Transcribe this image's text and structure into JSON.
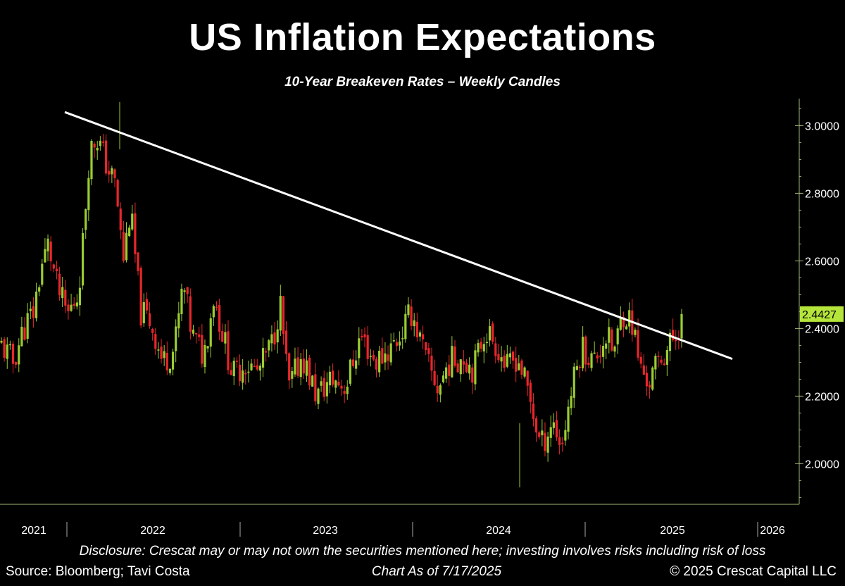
{
  "header": {
    "title": "US Inflation Expectations",
    "subtitle": "10-Year Breakeven Rates – Weekly Candles"
  },
  "footer": {
    "disclosure": "Disclosure: Crescat may or may not own the securities mentioned here; investing involves risks including risk of loss",
    "source": "Source: Bloomberg; Tavi Costa",
    "as_of": "Chart As of 7/17/2025",
    "copyright": "© 2025 Crescat Capital LLC"
  },
  "colors": {
    "background": "#000000",
    "up": "#9ACD32",
    "down": "#E8262B",
    "trendline": "#FFFFFF",
    "axis": "#A0B878",
    "last_price_label": "#B5E53A",
    "text": "#FFFFFF"
  },
  "chart_data": {
    "type": "candlestick",
    "title": "US Inflation Expectations",
    "subtitle": "10-Year Breakeven Rates – Weekly Candles",
    "y_axis": {
      "side": "right",
      "range": [
        1.88,
        3.08
      ],
      "ticks": [
        2.0,
        2.2,
        2.4,
        2.6,
        2.8,
        3.0
      ],
      "tick_labels": [
        "2.0000",
        "2.2000",
        "2.4000",
        "2.6000",
        "2.8000",
        "3.0000"
      ]
    },
    "x_axis": {
      "range": [
        2021.0,
        2026.2
      ],
      "year_labels": [
        {
          "label": "2021",
          "t": 2021.0
        },
        {
          "label": "2022",
          "t": 2022.0
        },
        {
          "label": "2023",
          "t": 2023.0
        },
        {
          "label": "2024",
          "t": 2024.0
        },
        {
          "label": "2025",
          "t": 2025.0
        },
        {
          "label": "2026",
          "t": 2026.0
        }
      ],
      "separators": [
        2021.5,
        2022.5,
        2023.5,
        2024.5,
        2025.5
      ]
    },
    "last_value": {
      "label": "2.4427",
      "value": 2.4427
    },
    "trendline": {
      "start": {
        "t": 2021.35,
        "value": 3.04
      },
      "end": {
        "t": 2025.85,
        "value": 2.31
      }
    },
    "series_summary": {
      "start": {
        "t": 2020.9,
        "value": 2.35
      },
      "peak": {
        "t": 2021.55,
        "value": 3.07
      },
      "low": {
        "t": 2024.2,
        "value": 1.93
      },
      "end": {
        "t": 2025.54,
        "value": 2.44
      }
    }
  }
}
